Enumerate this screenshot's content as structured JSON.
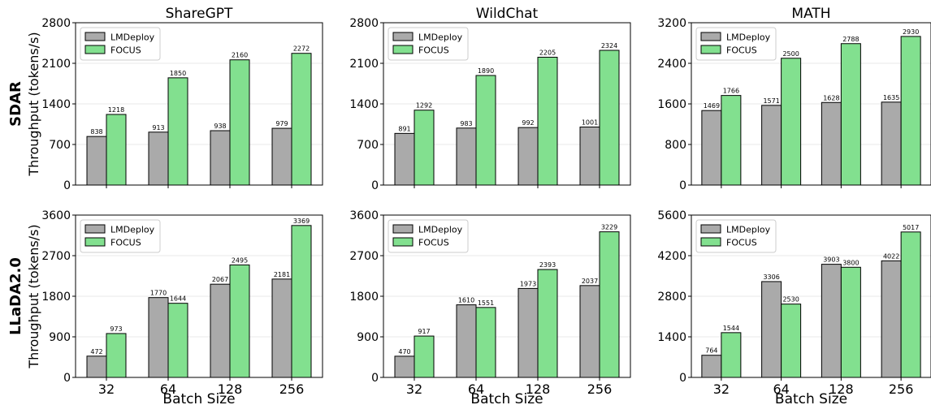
{
  "row_labels": [
    "SDAR",
    "LLaDA2.0"
  ],
  "ylabel": "Throughput (tokens/s)",
  "xlabel": "Batch Size",
  "chart_data": [
    {
      "type": "bar",
      "title": "ShareGPT",
      "categories": [
        "32",
        "64",
        "128",
        "256"
      ],
      "ylim": [
        0,
        2800
      ],
      "yticks": [
        0,
        700,
        1400,
        2100,
        2800
      ],
      "legend": "top-left",
      "grid": true,
      "series": [
        {
          "name": "LMDeploy",
          "color": "#aaaaaa",
          "values": [
            838,
            913,
            938,
            979
          ]
        },
        {
          "name": "FOCUS",
          "color": "#82e08f",
          "values": [
            1218,
            1850,
            2160,
            2272
          ]
        }
      ]
    },
    {
      "type": "bar",
      "title": "WildChat",
      "categories": [
        "32",
        "64",
        "128",
        "256"
      ],
      "ylim": [
        0,
        2800
      ],
      "yticks": [
        0,
        700,
        1400,
        2100,
        2800
      ],
      "legend": "top-left",
      "grid": true,
      "series": [
        {
          "name": "LMDeploy",
          "color": "#aaaaaa",
          "values": [
            891,
            983,
            992,
            1001
          ]
        },
        {
          "name": "FOCUS",
          "color": "#82e08f",
          "values": [
            1292,
            1890,
            2205,
            2324
          ]
        }
      ]
    },
    {
      "type": "bar",
      "title": "MATH",
      "categories": [
        "32",
        "64",
        "128",
        "256"
      ],
      "ylim": [
        0,
        3200
      ],
      "yticks": [
        0,
        800,
        1600,
        2400,
        3200
      ],
      "legend": "top-left",
      "grid": true,
      "series": [
        {
          "name": "LMDeploy",
          "color": "#aaaaaa",
          "values": [
            1469,
            1571,
            1628,
            1635
          ]
        },
        {
          "name": "FOCUS",
          "color": "#82e08f",
          "values": [
            1766,
            2500,
            2788,
            2930
          ]
        }
      ]
    },
    {
      "type": "bar",
      "title": "",
      "categories": [
        "32",
        "64",
        "128",
        "256"
      ],
      "ylim": [
        0,
        3600
      ],
      "yticks": [
        0,
        900,
        1800,
        2700,
        3600
      ],
      "legend": "top-left",
      "grid": true,
      "series": [
        {
          "name": "LMDeploy",
          "color": "#aaaaaa",
          "values": [
            472,
            1770,
            2067,
            2181
          ]
        },
        {
          "name": "FOCUS",
          "color": "#82e08f",
          "values": [
            973,
            1644,
            2495,
            3369
          ]
        }
      ]
    },
    {
      "type": "bar",
      "title": "",
      "categories": [
        "32",
        "64",
        "128",
        "256"
      ],
      "ylim": [
        0,
        3600
      ],
      "yticks": [
        0,
        900,
        1800,
        2700,
        3600
      ],
      "legend": "top-left",
      "grid": true,
      "series": [
        {
          "name": "LMDeploy",
          "color": "#aaaaaa",
          "values": [
            470,
            1610,
            1973,
            2037
          ]
        },
        {
          "name": "FOCUS",
          "color": "#82e08f",
          "values": [
            917,
            1551,
            2393,
            3229
          ]
        }
      ]
    },
    {
      "type": "bar",
      "title": "",
      "categories": [
        "32",
        "64",
        "128",
        "256"
      ],
      "ylim": [
        0,
        5600
      ],
      "yticks": [
        0,
        1400,
        2800,
        4200,
        5600
      ],
      "legend": "top-left",
      "grid": true,
      "series": [
        {
          "name": "LMDeploy",
          "color": "#aaaaaa",
          "values": [
            764,
            3306,
            3903,
            4022
          ]
        },
        {
          "name": "FOCUS",
          "color": "#82e08f",
          "values": [
            1544,
            2530,
            3800,
            5017
          ]
        }
      ]
    }
  ]
}
